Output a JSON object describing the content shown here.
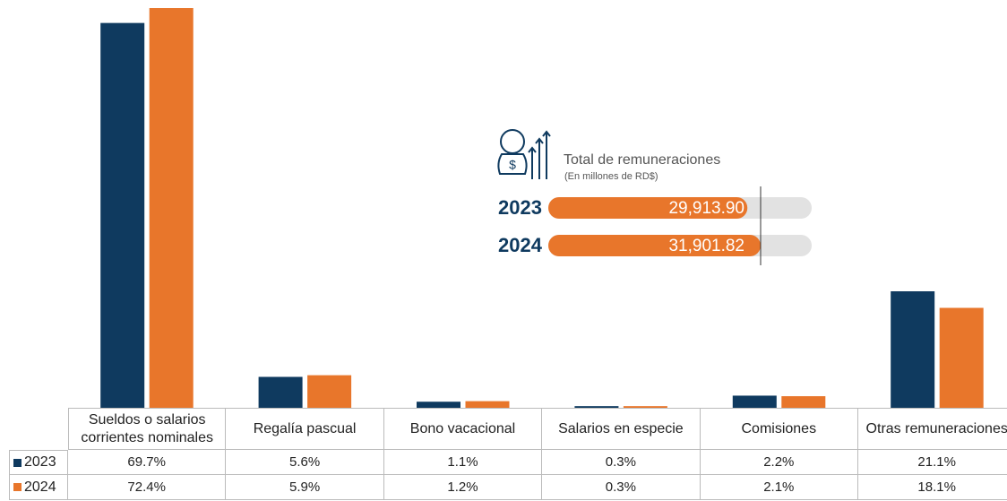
{
  "chart_data": {
    "type": "bar",
    "categories": [
      "Sueldos o salarios corrientes nominales",
      "Regalía pascual",
      "Bono vacacional",
      "Salarios en especie",
      "Comisiones",
      "Otras remuneraciones"
    ],
    "series": [
      {
        "name": "2023",
        "color": "#0f3a5f",
        "values": [
          69.7,
          5.6,
          1.1,
          0.3,
          2.2,
          21.1
        ],
        "value_labels": [
          "69.7%",
          "5.6%",
          "1.1%",
          "0.3%",
          "2.2%",
          "21.1%"
        ]
      },
      {
        "name": "2024",
        "color": "#e8762b",
        "values": [
          72.4,
          5.9,
          1.2,
          0.3,
          2.1,
          18.1
        ],
        "value_labels": [
          "72.4%",
          "5.9%",
          "1.2%",
          "0.3%",
          "2.1%",
          "18.1%"
        ]
      }
    ]
  },
  "totals": {
    "title": "Total de remuneraciones",
    "subtitle": "(En millones de RD$)",
    "categories": [
      "2023",
      "2024"
    ],
    "values": [
      29913.9,
      31901.82
    ],
    "value_labels": [
      "29,913.90",
      "31,901.82"
    ],
    "color": "#e8762b"
  }
}
